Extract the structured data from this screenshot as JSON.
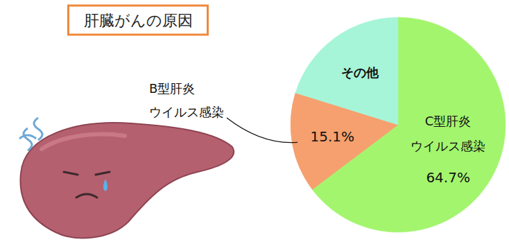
{
  "chart_data": {
    "type": "pie",
    "title": "肝臓がんの原因",
    "categories": [
      "C型肝炎\nウイルス感染",
      "B型肝炎\nウイルス感染",
      "その他"
    ],
    "values": [
      64.7,
      15.1,
      20.2
    ],
    "value_labels": [
      "64.7%",
      "15.1%",
      null
    ],
    "colors": [
      "#a3f56e",
      "#f5a06e",
      "#a6f5d8"
    ],
    "data_labels": true
  }
}
